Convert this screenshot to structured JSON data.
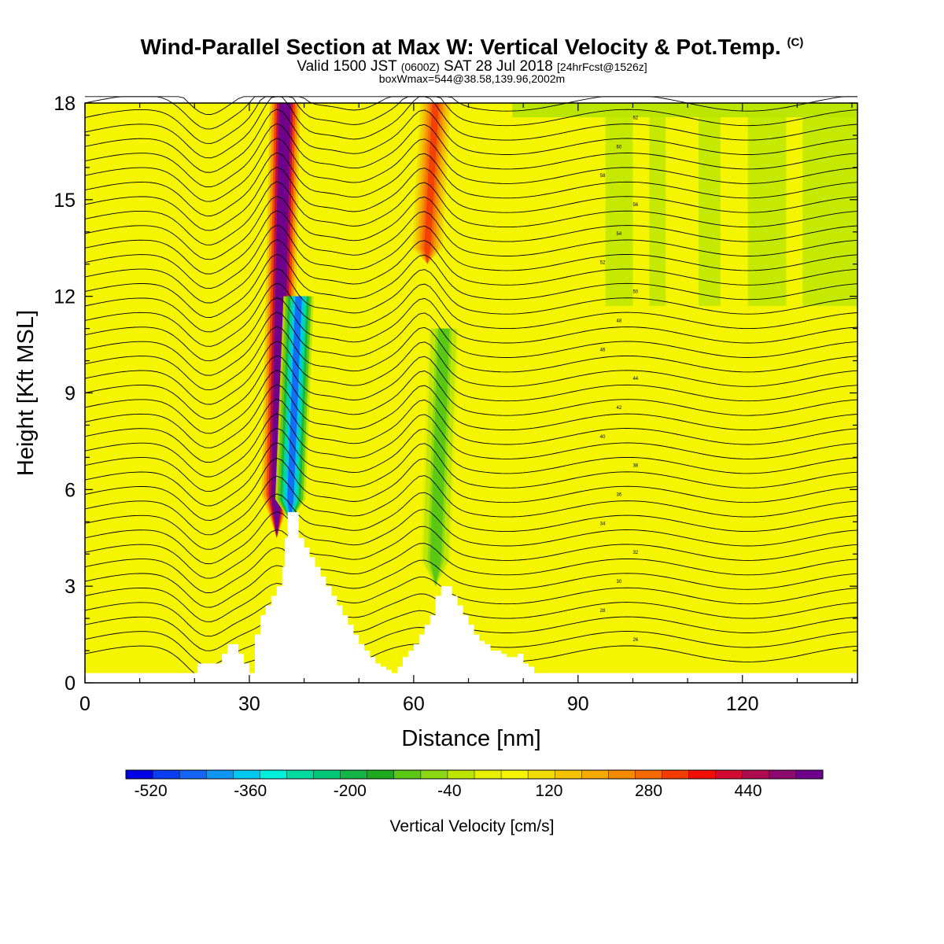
{
  "header": {
    "title": "Wind-Parallel Section at Max W: Vertical Velocity & Pot.Temp.",
    "copyright": "(C)",
    "valid_prefix": "Valid 1500 JST",
    "valid_z": "(0600Z)",
    "valid_date": "SAT 28 Jul 2018",
    "forecast": "[24hrFcst@1526z]",
    "box_max": "boxWmax=544@38.58,139.96,2002m"
  },
  "chart_data": {
    "type": "heatmap",
    "title": "Wind-Parallel Section at Max W: Vertical Velocity & Pot.Temp.",
    "xlabel": "Distance [nm]",
    "ylabel": "Height [Kft MSL]",
    "xlim": [
      0,
      141
    ],
    "ylim": [
      0,
      18
    ],
    "xticks": [
      0,
      30,
      60,
      90,
      120
    ],
    "yticks": [
      0,
      3,
      6,
      9,
      12,
      15,
      18
    ],
    "colorbar": {
      "label": "Vertical Velocity [cm/s]",
      "min": -560,
      "max": 560,
      "step": 40,
      "tick_labels": [
        "-520",
        "-360",
        "-200",
        "-40",
        "120",
        "280",
        "440"
      ],
      "colors": [
        "#0000e6",
        "#0a3cf0",
        "#1464f5",
        "#0f96f5",
        "#00c8f0",
        "#00f0dc",
        "#00dca0",
        "#00c878",
        "#14b446",
        "#1eaa1e",
        "#5ac814",
        "#8cd814",
        "#bce600",
        "#e6f000",
        "#f5f500",
        "#f0dc00",
        "#f5c400",
        "#f5aa00",
        "#f58c00",
        "#f56a00",
        "#f53c00",
        "#f00f00",
        "#d20a32",
        "#b00a50",
        "#8c0a6e",
        "#6e008c"
      ]
    },
    "features": [
      {
        "name": "updraft",
        "x": 35,
        "z_range": [
          4.5,
          18
        ],
        "w_max": 544
      },
      {
        "name": "downdraft",
        "x": 37.5,
        "z_range": [
          5,
          12
        ],
        "w_min": -480
      },
      {
        "name": "updraft",
        "x": 62.5,
        "z_range": [
          13,
          18
        ],
        "w_max": 260
      },
      {
        "name": "downdraft",
        "x": 64,
        "z_range": [
          3,
          11
        ],
        "w_min": -160
      }
    ],
    "terrain": {
      "x": [
        0,
        20,
        20.5,
        24,
        25,
        26,
        27,
        28,
        29,
        30,
        31,
        32,
        33,
        34,
        35,
        36,
        36.5,
        37,
        38,
        39,
        40,
        41,
        42,
        43,
        44,
        45,
        46,
        47,
        48,
        49,
        50,
        51,
        52,
        53,
        54,
        55,
        56,
        57,
        58,
        59,
        60,
        61,
        62,
        63,
        64,
        65,
        66,
        67,
        68,
        69,
        70,
        71,
        72,
        73,
        74,
        75,
        76,
        77,
        78,
        79,
        80,
        81,
        82,
        83,
        141
      ],
      "z": [
        0.3,
        0.3,
        0.6,
        0.6,
        0.9,
        1.2,
        1.2,
        0.9,
        0.6,
        0.3,
        1.5,
        2.1,
        2.4,
        2.7,
        3.0,
        3.6,
        4.5,
        5.3,
        5.3,
        4.5,
        4.2,
        3.9,
        3.6,
        3.3,
        3.0,
        2.7,
        2.4,
        2.1,
        1.8,
        1.5,
        1.2,
        1.0,
        0.8,
        0.6,
        0.5,
        0.4,
        0.3,
        0.5,
        0.8,
        1.0,
        1.2,
        1.5,
        1.8,
        2.1,
        2.7,
        3.0,
        3.0,
        2.7,
        2.4,
        2.1,
        1.8,
        1.5,
        1.3,
        1.2,
        1.0,
        1.0,
        0.9,
        0.8,
        0.8,
        0.9,
        0.6,
        0.5,
        0.3,
        0.3,
        0.3
      ]
    },
    "theta_contour_labels": [
      "62",
      "60",
      "58",
      "56",
      "54",
      "52",
      "50",
      "48",
      "46",
      "44",
      "42",
      "40",
      "38",
      "36",
      "34",
      "32",
      "30",
      "28",
      "26"
    ]
  }
}
